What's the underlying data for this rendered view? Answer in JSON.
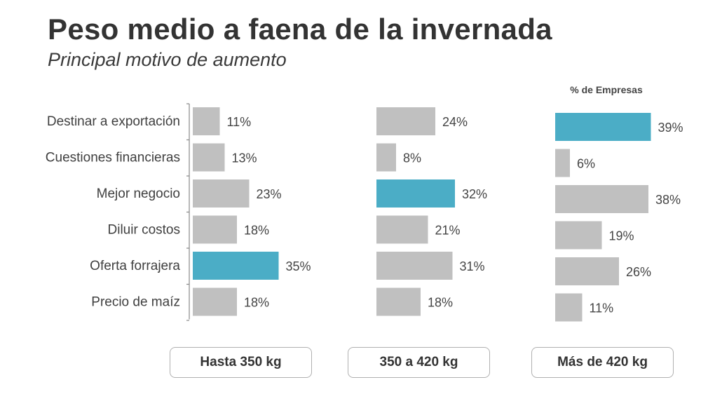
{
  "header": {
    "title": "Peso medio a faena de la invernada",
    "subtitle": "Principal motivo de aumento"
  },
  "units_label": "% de Empresas",
  "colors": {
    "default_bar": "#c0c0c0",
    "highlight_bar": "#4badc6",
    "axis": "#888888"
  },
  "chart_data": {
    "type": "bar",
    "orientation": "horizontal",
    "title": "Peso medio a faena de la invernada",
    "subtitle": "Principal motivo de aumento",
    "categories": [
      "Destinar a exportación",
      "Cuestiones financieras",
      "Mejor negocio",
      "Diluir costos",
      "Oferta forrajera",
      "Precio de maíz"
    ],
    "value_unit": "% de Empresas",
    "xlim": [
      0,
      40
    ],
    "panels": [
      {
        "name": "Hasta 350 kg",
        "values": [
          11,
          13,
          23,
          18,
          35,
          18
        ],
        "labels": [
          "11%",
          "13%",
          "23%",
          "18%",
          "35%",
          "18%"
        ],
        "highlight_index": 4
      },
      {
        "name": "350 a 420 kg",
        "values": [
          24,
          8,
          32,
          21,
          31,
          18
        ],
        "labels": [
          "24%",
          "8%",
          "32%",
          "21%",
          "31%",
          "18%"
        ],
        "highlight_index": 2
      },
      {
        "name": "Más de 420 kg",
        "values": [
          39,
          6,
          38,
          19,
          26,
          11
        ],
        "labels": [
          "39%",
          "6%",
          "38%",
          "19%",
          "26%",
          "11%"
        ],
        "highlight_index": 0
      }
    ]
  }
}
